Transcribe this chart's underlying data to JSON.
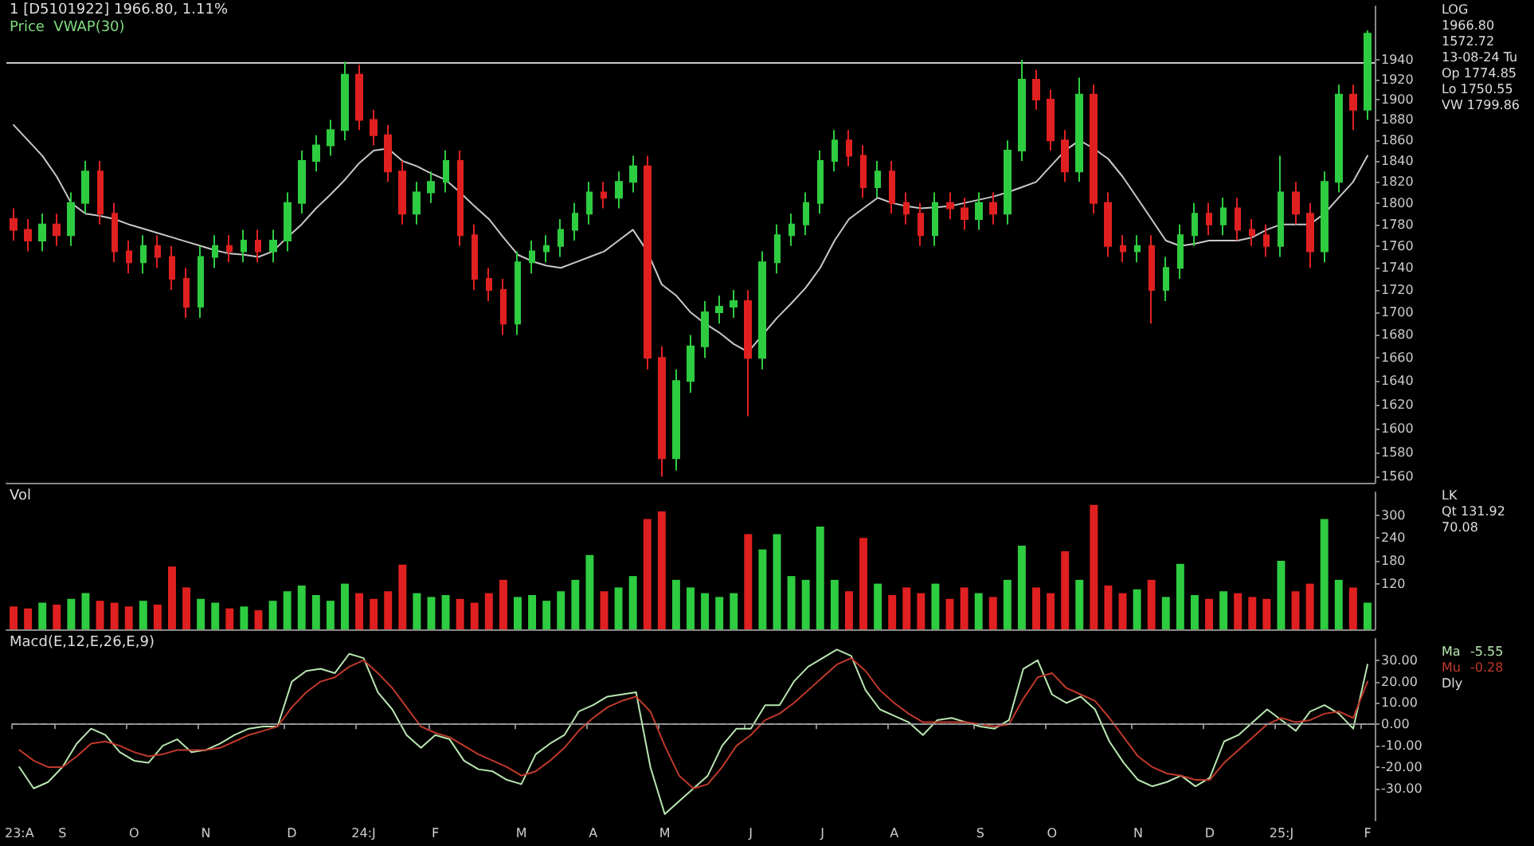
{
  "chart_data": [
    {
      "type": "candlestick",
      "title": "1 [D5101922] 1966.80, 1.11%",
      "subtitle": "Price  VWAP(30)",
      "categories": [
        null,
        null,
        null,
        null,
        null,
        null,
        null,
        null,
        null,
        null,
        null,
        null,
        null,
        null,
        null,
        null,
        null,
        null,
        null,
        null,
        null,
        null,
        null,
        null,
        null,
        null,
        null,
        null,
        null,
        null,
        null,
        null,
        null,
        null,
        null,
        null,
        null,
        null,
        null,
        null,
        null,
        null,
        null,
        null,
        null,
        null,
        null,
        null,
        null,
        null,
        null,
        null,
        null,
        null,
        null,
        null,
        null,
        null,
        null,
        null,
        null,
        null,
        null,
        null,
        null,
        null,
        null,
        null,
        null,
        null,
        null,
        null,
        null,
        null,
        null,
        null,
        null,
        null,
        null,
        null,
        null,
        null,
        null,
        null,
        null,
        null,
        null,
        null,
        null,
        null,
        null,
        null,
        null,
        null,
        null
      ],
      "series": [
        {
          "ohlc": [
            [
              1785,
              1795,
              1765,
              1775
            ],
            [
              1775,
              1785,
              1755,
              1765
            ],
            [
              1765,
              1790,
              1755,
              1780
            ],
            [
              1780,
              1790,
              1760,
              1770
            ],
            [
              1770,
              1810,
              1760,
              1800
            ],
            [
              1800,
              1840,
              1790,
              1830
            ],
            [
              1830,
              1840,
              1780,
              1790
            ],
            [
              1790,
              1800,
              1745,
              1755
            ],
            [
              1755,
              1765,
              1735,
              1745
            ],
            [
              1745,
              1770,
              1735,
              1760
            ],
            [
              1760,
              1770,
              1740,
              1750
            ],
            [
              1750,
              1760,
              1720,
              1730
            ],
            [
              1730,
              1740,
              1695,
              1705
            ],
            [
              1705,
              1760,
              1695,
              1750
            ],
            [
              1750,
              1770,
              1740,
              1760
            ],
            [
              1760,
              1770,
              1745,
              1755
            ],
            [
              1755,
              1775,
              1745,
              1765
            ],
            [
              1765,
              1775,
              1745,
              1755
            ],
            [
              1755,
              1775,
              1745,
              1765
            ],
            [
              1765,
              1810,
              1755,
              1800
            ],
            [
              1800,
              1850,
              1790,
              1840
            ],
            [
              1840,
              1865,
              1830,
              1855
            ],
            [
              1855,
              1880,
              1845,
              1870
            ],
            [
              1870,
              1938,
              1860,
              1925
            ],
            [
              1925,
              1935,
              1870,
              1880
            ],
            [
              1880,
              1890,
              1855,
              1865
            ],
            [
              1865,
              1875,
              1820,
              1830
            ],
            [
              1830,
              1840,
              1780,
              1790
            ],
            [
              1790,
              1820,
              1780,
              1810
            ],
            [
              1810,
              1830,
              1800,
              1820
            ],
            [
              1820,
              1850,
              1810,
              1840
            ],
            [
              1840,
              1850,
              1760,
              1770
            ],
            [
              1770,
              1780,
              1720,
              1730
            ],
            [
              1730,
              1740,
              1710,
              1720
            ],
            [
              1720,
              1730,
              1680,
              1690
            ],
            [
              1690,
              1755,
              1680,
              1745
            ],
            [
              1745,
              1765,
              1735,
              1755
            ],
            [
              1755,
              1770,
              1745,
              1760
            ],
            [
              1760,
              1785,
              1750,
              1775
            ],
            [
              1775,
              1800,
              1765,
              1790
            ],
            [
              1790,
              1820,
              1780,
              1810
            ],
            [
              1810,
              1820,
              1795,
              1805
            ],
            [
              1805,
              1830,
              1795,
              1820
            ],
            [
              1820,
              1845,
              1810,
              1835
            ],
            [
              1835,
              1845,
              1650,
              1660
            ],
            [
              1660,
              1670,
              1560,
              1575
            ],
            [
              1575,
              1650,
              1565,
              1640
            ],
            [
              1640,
              1680,
              1630,
              1670
            ],
            [
              1670,
              1710,
              1660,
              1700
            ],
            [
              1700,
              1715,
              1690,
              1705
            ],
            [
              1705,
              1720,
              1695,
              1710
            ],
            [
              1710,
              1720,
              1610,
              1660
            ],
            [
              1660,
              1755,
              1650,
              1745
            ],
            [
              1745,
              1780,
              1735,
              1770
            ],
            [
              1770,
              1790,
              1760,
              1780
            ],
            [
              1780,
              1810,
              1770,
              1800
            ],
            [
              1800,
              1850,
              1790,
              1840
            ],
            [
              1840,
              1870,
              1830,
              1860
            ],
            [
              1860,
              1870,
              1835,
              1845
            ],
            [
              1845,
              1855,
              1805,
              1815
            ],
            [
              1815,
              1840,
              1805,
              1830
            ],
            [
              1830,
              1840,
              1790,
              1800
            ],
            [
              1800,
              1810,
              1780,
              1790
            ],
            [
              1790,
              1800,
              1760,
              1770
            ],
            [
              1770,
              1810,
              1760,
              1800
            ],
            [
              1800,
              1810,
              1785,
              1795
            ],
            [
              1795,
              1805,
              1775,
              1785
            ],
            [
              1785,
              1810,
              1775,
              1800
            ],
            [
              1800,
              1810,
              1780,
              1790
            ],
            [
              1790,
              1860,
              1780,
              1850
            ],
            [
              1850,
              1940,
              1840,
              1920
            ],
            [
              1920,
              1930,
              1890,
              1900
            ],
            [
              1900,
              1910,
              1850,
              1860
            ],
            [
              1860,
              1870,
              1820,
              1830
            ],
            [
              1830,
              1922,
              1820,
              1905
            ],
            [
              1905,
              1915,
              1790,
              1800
            ],
            [
              1800,
              1810,
              1750,
              1760
            ],
            [
              1760,
              1770,
              1745,
              1755
            ],
            [
              1755,
              1770,
              1745,
              1760
            ],
            [
              1760,
              1770,
              1690,
              1720
            ],
            [
              1720,
              1750,
              1710,
              1740
            ],
            [
              1740,
              1780,
              1730,
              1770
            ],
            [
              1770,
              1800,
              1760,
              1790
            ],
            [
              1790,
              1800,
              1770,
              1780
            ],
            [
              1780,
              1805,
              1770,
              1795
            ],
            [
              1795,
              1805,
              1765,
              1775
            ],
            [
              1775,
              1785,
              1760,
              1770
            ],
            [
              1770,
              1780,
              1750,
              1760
            ],
            [
              1760,
              1845,
              1750,
              1810
            ],
            [
              1810,
              1820,
              1780,
              1790
            ],
            [
              1790,
              1800,
              1740,
              1755
            ],
            [
              1755,
              1830,
              1745,
              1820
            ],
            [
              1820,
              1915,
              1810,
              1905
            ],
            [
              1905,
              1915,
              1870,
              1890
            ],
            [
              1890,
              1970,
              1880,
              1966.8
            ]
          ],
          "colors": [
            "#e02020",
            "#e02020",
            "#2ecc40",
            "#e02020",
            "#2ecc40",
            "#2ecc40",
            "#e02020",
            "#e02020",
            "#e02020",
            "#2ecc40",
            "#e02020",
            "#e02020",
            "#e02020",
            "#2ecc40",
            "#2ecc40",
            "#e02020",
            "#2ecc40",
            "#e02020",
            "#2ecc40",
            "#2ecc40",
            "#2ecc40",
            "#2ecc40",
            "#2ecc40",
            "#2ecc40",
            "#e02020",
            "#e02020",
            "#e02020",
            "#e02020",
            "#2ecc40",
            "#2ecc40",
            "#2ecc40",
            "#e02020",
            "#e02020",
            "#e02020",
            "#e02020",
            "#2ecc40",
            "#2ecc40",
            "#2ecc40",
            "#2ecc40",
            "#2ecc40",
            "#2ecc40",
            "#e02020",
            "#2ecc40",
            "#2ecc40",
            "#e02020",
            "#e02020",
            "#2ecc40",
            "#2ecc40",
            "#2ecc40",
            "#2ecc40",
            "#2ecc40",
            "#e02020",
            "#2ecc40",
            "#2ecc40",
            "#2ecc40",
            "#2ecc40",
            "#2ecc40",
            "#2ecc40",
            "#e02020",
            "#e02020",
            "#2ecc40",
            "#e02020",
            "#e02020",
            "#e02020",
            "#2ecc40",
            "#e02020",
            "#e02020",
            "#2ecc40",
            "#e02020",
            "#2ecc40",
            "#2ecc40",
            "#e02020",
            "#e02020",
            "#e02020",
            "#2ecc40",
            "#e02020",
            "#e02020",
            "#e02020",
            "#2ecc40",
            "#e02020",
            "#2ecc40",
            "#2ecc40",
            "#2ecc40",
            "#e02020",
            "#2ecc40",
            "#e02020",
            "#e02020",
            "#e02020",
            "#2ecc40",
            "#e02020",
            "#e02020",
            "#2ecc40",
            "#2ecc40",
            "#e02020",
            "#2ecc40"
          ]
        },
        {
          "type": "line",
          "color": "#c8c8c8",
          "values": [
            1875,
            1860,
            1845,
            1825,
            1800,
            1790,
            1788,
            1785,
            1780,
            1776,
            1772,
            1768,
            1764,
            1760,
            1756,
            1753,
            1752,
            1750,
            1755,
            1768,
            1780,
            1795,
            1808,
            1822,
            1838,
            1850,
            1852,
            1840,
            1835,
            1828,
            1822,
            1810,
            1797,
            1785,
            1768,
            1752,
            1746,
            1742,
            1740,
            1745,
            1750,
            1755,
            1765,
            1775,
            1755,
            1725,
            1715,
            1700,
            1690,
            1682,
            1672,
            1665,
            1680,
            1695,
            1708,
            1722,
            1740,
            1765,
            1785,
            1795,
            1805,
            1800,
            1797,
            1795,
            1796,
            1797,
            1800,
            1803,
            1806,
            1810,
            1815,
            1820,
            1835,
            1850,
            1860,
            1852,
            1842,
            1825,
            1805,
            1785,
            1765,
            1760,
            1762,
            1765,
            1765,
            1765,
            1768,
            1775,
            1780,
            1780,
            1780,
            1790,
            1805,
            1820,
            1845
          ]
        }
      ],
      "ylim": [
        1555,
        1995
      ],
      "yticks": [
        1560,
        1580,
        1600,
        1620,
        1640,
        1660,
        1680,
        1700,
        1720,
        1740,
        1760,
        1780,
        1800,
        1820,
        1840,
        1860,
        1880,
        1900,
        1920,
        1940
      ],
      "log": true,
      "tick_labels": "y",
      "marker": "none",
      "ref_lines": [
        {
          "axis": "y",
          "value": 1938,
          "color": "#c8c8c8"
        }
      ],
      "annotations": [
        "LOG",
        "1966.80",
        "1572.72",
        "13-08-24 Tu",
        "Op 1774.85",
        "Lo 1750.55",
        "VW 1799.86"
      ]
    },
    {
      "type": "bar",
      "title": "Vol",
      "categories": [
        null,
        null,
        null,
        null,
        null,
        null,
        null,
        null,
        null,
        null,
        null,
        null,
        null,
        null,
        null,
        null,
        null,
        null,
        null,
        null,
        null,
        null,
        null,
        null,
        null,
        null,
        null,
        null,
        null,
        null,
        null,
        null,
        null,
        null,
        null,
        null,
        null,
        null,
        null,
        null,
        null,
        null,
        null,
        null,
        null,
        null,
        null,
        null,
        null,
        null,
        null,
        null,
        null,
        null,
        null,
        null,
        null,
        null,
        null,
        null,
        null,
        null,
        null,
        null,
        null,
        null,
        null,
        null,
        null,
        null,
        null,
        null,
        null,
        null,
        null,
        null,
        null,
        null,
        null,
        null,
        null,
        null,
        null,
        null,
        null,
        null,
        null,
        null,
        null,
        null,
        null,
        null,
        null,
        null,
        null
      ],
      "values": [
        60,
        55,
        70,
        65,
        80,
        95,
        75,
        70,
        60,
        75,
        65,
        165,
        110,
        80,
        70,
        55,
        60,
        50,
        75,
        100,
        115,
        90,
        75,
        120,
        95,
        80,
        100,
        170,
        95,
        85,
        90,
        80,
        70,
        95,
        130,
        85,
        90,
        75,
        100,
        130,
        195,
        100,
        110,
        140,
        290,
        310,
        130,
        110,
        95,
        85,
        95,
        250,
        210,
        250,
        140,
        130,
        270,
        130,
        100,
        240,
        120,
        90,
        110,
        95,
        120,
        80,
        110,
        95,
        85,
        130,
        220,
        110,
        95,
        205,
        130,
        327,
        115,
        95,
        105,
        130,
        85,
        172,
        90,
        80,
        100,
        95,
        85,
        80,
        180,
        100,
        120,
        290,
        130,
        110,
        70
      ],
      "colors": [
        "#e02020",
        "#e02020",
        "#2ecc40",
        "#e02020",
        "#2ecc40",
        "#2ecc40",
        "#e02020",
        "#e02020",
        "#e02020",
        "#2ecc40",
        "#e02020",
        "#e02020",
        "#e02020",
        "#2ecc40",
        "#2ecc40",
        "#e02020",
        "#2ecc40",
        "#e02020",
        "#2ecc40",
        "#2ecc40",
        "#2ecc40",
        "#2ecc40",
        "#2ecc40",
        "#2ecc40",
        "#e02020",
        "#e02020",
        "#e02020",
        "#e02020",
        "#2ecc40",
        "#2ecc40",
        "#2ecc40",
        "#e02020",
        "#e02020",
        "#e02020",
        "#e02020",
        "#2ecc40",
        "#2ecc40",
        "#2ecc40",
        "#2ecc40",
        "#2ecc40",
        "#2ecc40",
        "#e02020",
        "#2ecc40",
        "#2ecc40",
        "#e02020",
        "#e02020",
        "#2ecc40",
        "#2ecc40",
        "#2ecc40",
        "#2ecc40",
        "#2ecc40",
        "#e02020",
        "#2ecc40",
        "#2ecc40",
        "#2ecc40",
        "#2ecc40",
        "#2ecc40",
        "#2ecc40",
        "#e02020",
        "#e02020",
        "#2ecc40",
        "#e02020",
        "#e02020",
        "#e02020",
        "#2ecc40",
        "#e02020",
        "#e02020",
        "#2ecc40",
        "#e02020",
        "#2ecc40",
        "#2ecc40",
        "#e02020",
        "#e02020",
        "#e02020",
        "#2ecc40",
        "#e02020",
        "#e02020",
        "#e02020",
        "#2ecc40",
        "#e02020",
        "#2ecc40",
        "#2ecc40",
        "#2ecc40",
        "#e02020",
        "#2ecc40",
        "#e02020",
        "#e02020",
        "#e02020",
        "#2ecc40",
        "#e02020",
        "#e02020",
        "#2ecc40",
        "#2ecc40",
        "#e02020",
        "#2ecc40"
      ],
      "ylim": [
        0,
        360
      ],
      "yticks": [
        120,
        180,
        240,
        300
      ],
      "tick_labels": "y",
      "annotations": [
        "LK",
        "Qt 131.92",
        "70.08"
      ]
    },
    {
      "type": "line",
      "title": "Macd(E,12,E,26,E,9)",
      "categories": [
        "23:A",
        null,
        null,
        "S",
        null,
        null,
        null,
        null,
        "O",
        null,
        null,
        null,
        null,
        "N",
        null,
        null,
        null,
        null,
        null,
        "D",
        null,
        null,
        null,
        null,
        "24:J",
        null,
        null,
        null,
        null,
        "F",
        null,
        null,
        null,
        null,
        null,
        "M",
        null,
        null,
        null,
        null,
        "A",
        null,
        null,
        null,
        null,
        "M",
        null,
        null,
        null,
        null,
        null,
        "J",
        null,
        null,
        null,
        null,
        "J",
        null,
        null,
        null,
        null,
        "A",
        null,
        null,
        null,
        null,
        null,
        "S",
        null,
        null,
        null,
        null,
        "O",
        null,
        null,
        null,
        null,
        null,
        "N",
        null,
        null,
        null,
        null,
        "D",
        null,
        null,
        null,
        null,
        "25:J",
        null,
        null,
        null,
        null,
        null,
        "F"
      ],
      "series": [
        {
          "name": "Ma",
          "color": "#b8e6b0",
          "values": [
            -20,
            -30,
            -27,
            -20,
            -9,
            -2,
            -5,
            -13,
            -17,
            -18,
            -10,
            -7,
            -13,
            -12,
            -9,
            -5,
            -2,
            -1,
            -1,
            20,
            25,
            26,
            24,
            33,
            31,
            15,
            7,
            -5,
            -11,
            -5,
            -7,
            -17,
            -21,
            -22,
            -26,
            -28,
            -14,
            -9,
            -5,
            6,
            9,
            13,
            14,
            15,
            -20,
            -42,
            -36,
            -30,
            -24,
            -10,
            -2,
            -2,
            9,
            9,
            20,
            27,
            31,
            35,
            32,
            16,
            7,
            4,
            1,
            -5,
            2,
            3,
            1,
            -1,
            -2,
            2,
            26,
            30,
            14,
            10,
            13,
            7,
            -8,
            -18,
            -26,
            -29,
            -27,
            -24,
            -29,
            -25,
            -8,
            -5,
            1,
            7,
            2,
            -3,
            6,
            9,
            5,
            -2,
            28
          ]
        },
        {
          "name": "Mu",
          "color": "#c0392b",
          "values": [
            -12,
            -17,
            -20,
            -20,
            -15,
            -9,
            -8,
            -10,
            -13,
            -15,
            -14,
            -12,
            -12,
            -12,
            -11,
            -8,
            -5,
            -3,
            -1,
            8,
            15,
            20,
            22,
            27,
            30,
            24,
            17,
            8,
            -1,
            -4,
            -6,
            -10,
            -14,
            -17,
            -20,
            -24,
            -22,
            -17,
            -11,
            -3,
            3,
            8,
            11,
            13,
            6,
            -10,
            -24,
            -30,
            -28,
            -20,
            -10,
            -5,
            2,
            5,
            10,
            16,
            22,
            28,
            31,
            25,
            16,
            10,
            5,
            1,
            1,
            1,
            1,
            0,
            -1,
            0,
            12,
            22,
            24,
            17,
            14,
            11,
            3,
            -6,
            -15,
            -20,
            -23,
            -24,
            -26,
            -26,
            -18,
            -12,
            -6,
            0,
            3,
            1,
            2,
            5,
            6,
            3,
            20
          ]
        }
      ],
      "ylim": [
        -45,
        40
      ],
      "yticks": [
        {
          "value": -30,
          "label": "-30.00"
        },
        {
          "value": -20,
          "label": "-20.00"
        },
        {
          "value": -10,
          "label": "-10.00"
        },
        {
          "value": 0,
          "label": "0.00"
        },
        {
          "value": 10,
          "label": "10.00"
        },
        {
          "value": 20,
          "label": "20.00"
        },
        {
          "value": 30,
          "label": "30.00"
        }
      ],
      "marker": "none",
      "ref_lines": [
        {
          "axis": "y",
          "value": 0,
          "color": "#999999",
          "line_style": "dashed"
        }
      ],
      "annotations": [
        "-5.55",
        "-0.28",
        "Dly"
      ]
    }
  ]
}
